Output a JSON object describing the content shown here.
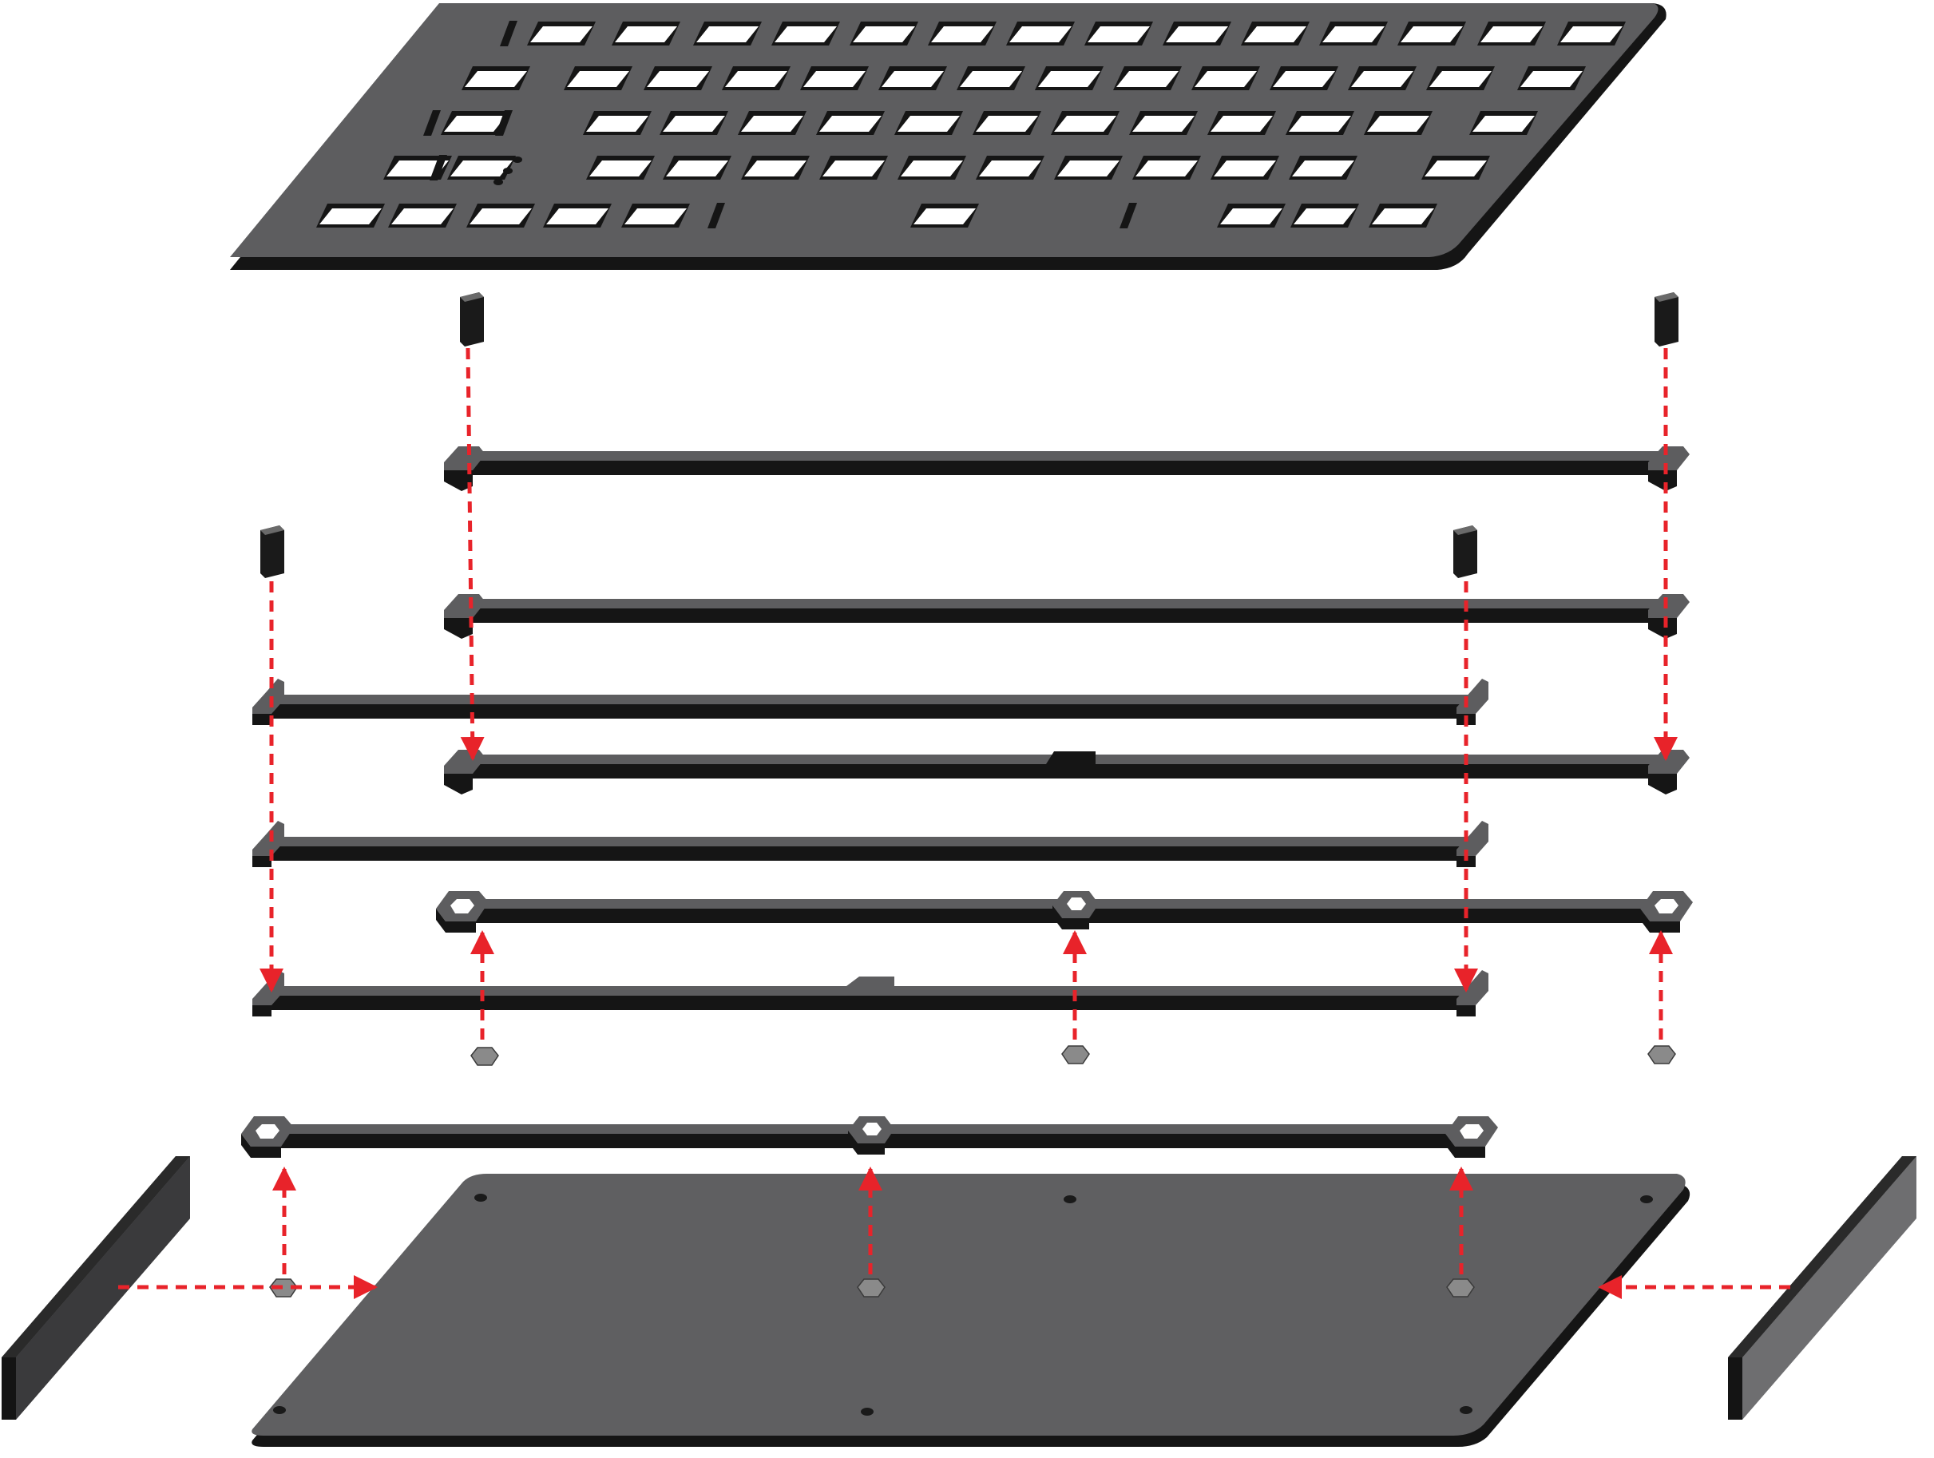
{
  "diagram": {
    "kind": "exploded-assembly",
    "colors": {
      "part_top": "#5d5d5f",
      "part_edge": "#151515",
      "arrow": "#e8232a",
      "nut": "#8a8a8a",
      "foot": "#6e6e70"
    },
    "parts": [
      {
        "id": "switch-plate",
        "icon": "keyboard-plate"
      },
      {
        "id": "standoff-nw"
      },
      {
        "id": "standoff-ne"
      },
      {
        "id": "standoff-w"
      },
      {
        "id": "standoff-e"
      },
      {
        "id": "frame-layer-1"
      },
      {
        "id": "frame-layer-2"
      },
      {
        "id": "frame-layer-3"
      },
      {
        "id": "frame-layer-4"
      },
      {
        "id": "frame-layer-5"
      },
      {
        "id": "frame-layer-6"
      },
      {
        "id": "frame-layer-7"
      },
      {
        "id": "frame-layer-8"
      },
      {
        "id": "bottom-plate"
      },
      {
        "id": "foot-left"
      },
      {
        "id": "foot-right"
      },
      {
        "id": "nut-row-1"
      },
      {
        "id": "nut-row-2"
      }
    ]
  }
}
